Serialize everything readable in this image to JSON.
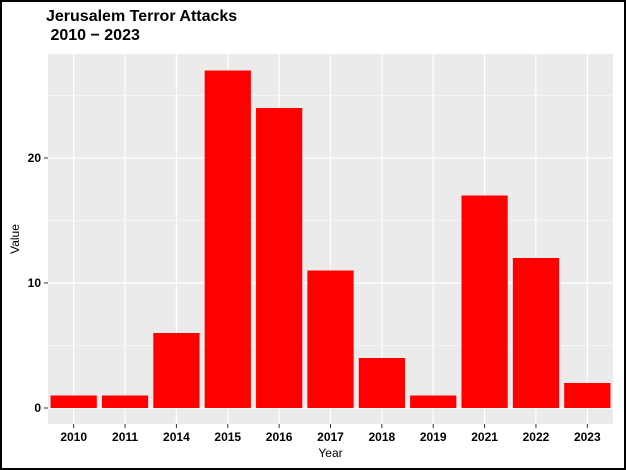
{
  "chart_data": {
    "type": "bar",
    "title_line1": "Jerusalem Terror Attacks",
    "title_line2": " 2010 − 2023",
    "xlabel": "Year",
    "ylabel": "Value",
    "categories": [
      "2010",
      "2011",
      "2014",
      "2015",
      "2016",
      "2017",
      "2018",
      "2019",
      "2021",
      "2022",
      "2023"
    ],
    "values": [
      1,
      1,
      6,
      27,
      24,
      11,
      4,
      1,
      17,
      12,
      2
    ],
    "ylim": [
      0,
      28.3
    ],
    "yticks": [
      0,
      10,
      20
    ],
    "grid": true,
    "bar_color": "#ff0000",
    "panel_color": "#ebebeb"
  }
}
